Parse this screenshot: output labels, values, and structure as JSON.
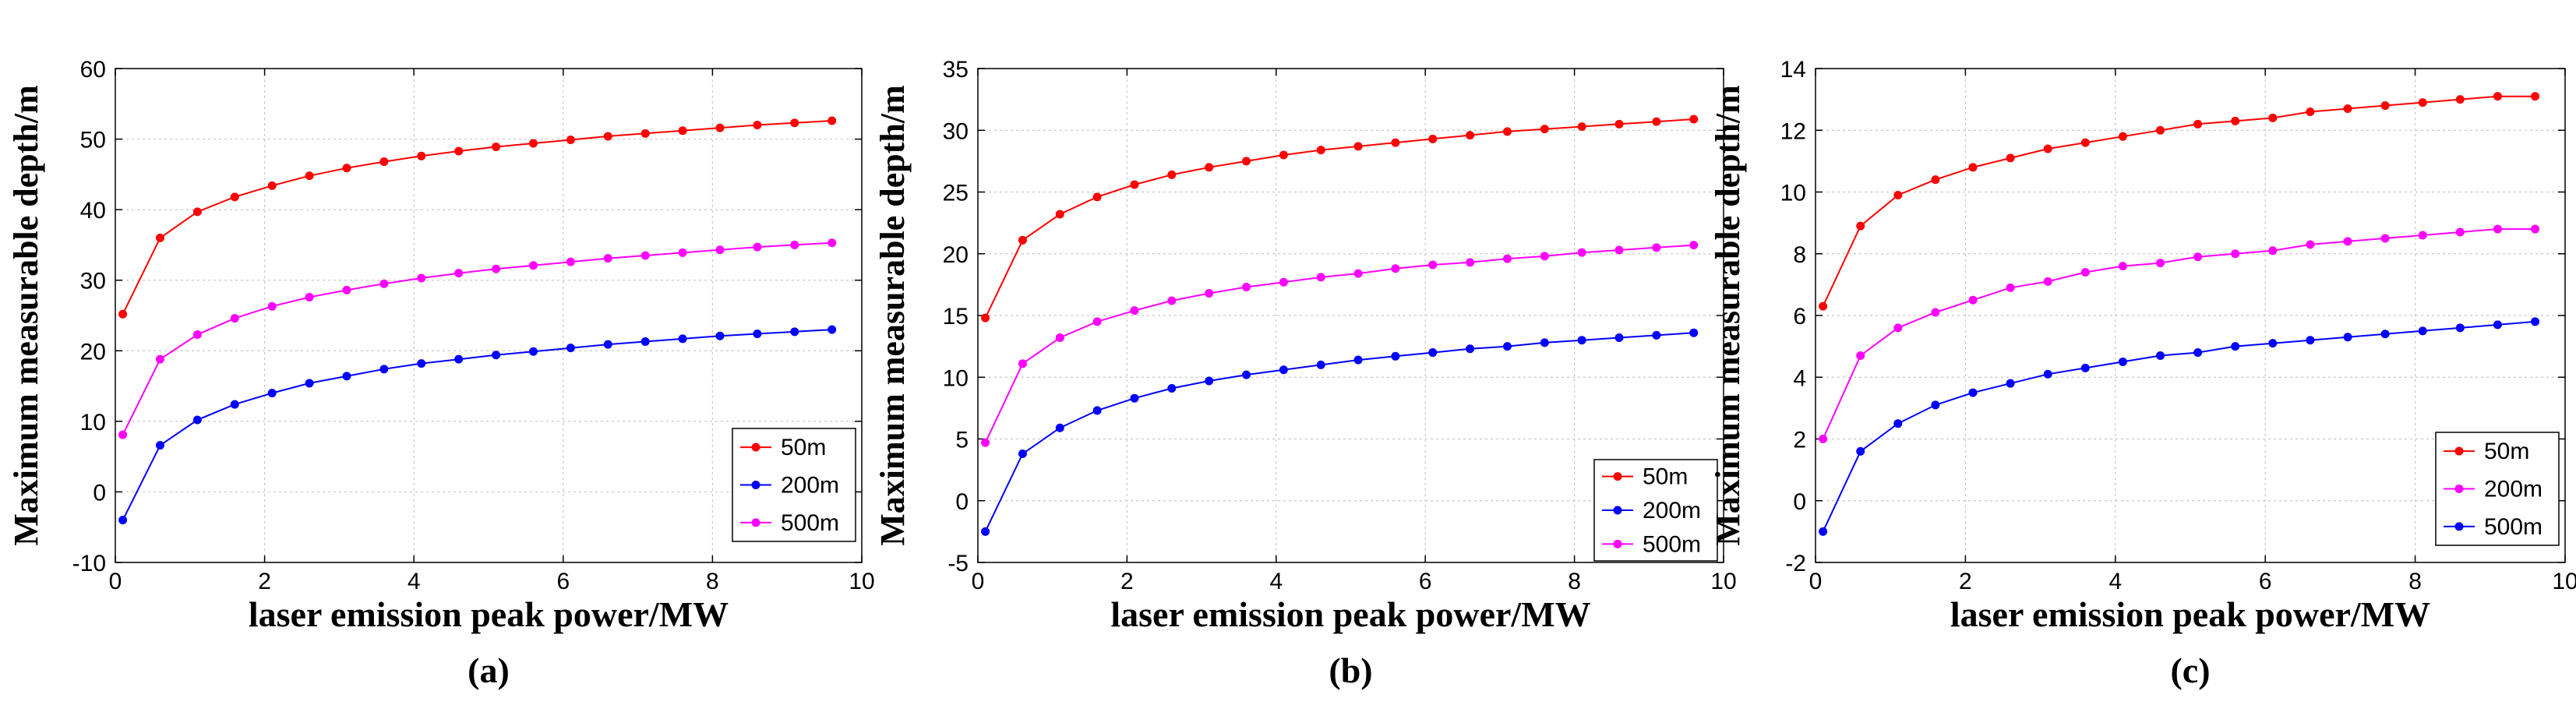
{
  "chart_data": [
    {
      "type": "line",
      "panel_label": "(a)",
      "xlabel": "laser emission peak power/MW",
      "ylabel": "Maximum measurable depth/m",
      "xlim": [
        0,
        10
      ],
      "ylim": [
        -10,
        60
      ],
      "xticks": [
        0,
        2,
        4,
        6,
        8,
        10
      ],
      "yticks": [
        -10,
        0,
        10,
        20,
        30,
        40,
        50,
        60
      ],
      "grid": true,
      "legend_position": "lower-right",
      "x": [
        0.1,
        0.6,
        1.1,
        1.6,
        2.1,
        2.6,
        3.1,
        3.6,
        4.1,
        4.6,
        5.1,
        5.6,
        6.1,
        6.6,
        7.1,
        7.6,
        8.1,
        8.6,
        9.1,
        9.6
      ],
      "series": [
        {
          "name": "50m",
          "color": "#ff0000",
          "values": [
            25.2,
            36.0,
            39.7,
            41.8,
            43.4,
            44.8,
            45.9,
            46.8,
            47.6,
            48.3,
            48.9,
            49.4,
            49.9,
            50.4,
            50.8,
            51.2,
            51.6,
            52.0,
            52.3,
            52.6
          ]
        },
        {
          "name": "200m",
          "color": "#0000ff",
          "values": [
            -4.0,
            6.6,
            10.2,
            12.4,
            14.0,
            15.4,
            16.4,
            17.4,
            18.2,
            18.8,
            19.4,
            19.9,
            20.4,
            20.9,
            21.3,
            21.7,
            22.1,
            22.4,
            22.7,
            23.0
          ]
        },
        {
          "name": "500m",
          "color": "#ff00ff",
          "values": [
            8.1,
            18.8,
            22.3,
            24.6,
            26.3,
            27.6,
            28.6,
            29.5,
            30.3,
            31.0,
            31.6,
            32.1,
            32.6,
            33.1,
            33.5,
            33.9,
            34.3,
            34.7,
            35.0,
            35.3
          ]
        }
      ]
    },
    {
      "type": "line",
      "panel_label": "(b)",
      "xlabel": "laser emission peak power/MW",
      "ylabel": "Maximum measurable depth/m",
      "xlim": [
        0,
        10
      ],
      "ylim": [
        -5,
        35
      ],
      "xticks": [
        0,
        2,
        4,
        6,
        8,
        10
      ],
      "yticks": [
        -5,
        0,
        5,
        10,
        15,
        20,
        25,
        30,
        35
      ],
      "grid": true,
      "legend_position": "lower-right",
      "x": [
        0.1,
        0.6,
        1.1,
        1.6,
        2.1,
        2.6,
        3.1,
        3.6,
        4.1,
        4.6,
        5.1,
        5.6,
        6.1,
        6.6,
        7.1,
        7.6,
        8.1,
        8.6,
        9.1,
        9.6
      ],
      "series": [
        {
          "name": "50m",
          "color": "#ff0000",
          "values": [
            14.8,
            21.1,
            23.2,
            24.6,
            25.6,
            26.4,
            27.0,
            27.5,
            28.0,
            28.4,
            28.7,
            29.0,
            29.3,
            29.6,
            29.9,
            30.1,
            30.3,
            30.5,
            30.7,
            30.9
          ]
        },
        {
          "name": "200m",
          "color": "#0000ff",
          "values": [
            -2.5,
            3.8,
            5.9,
            7.3,
            8.3,
            9.1,
            9.7,
            10.2,
            10.6,
            11.0,
            11.4,
            11.7,
            12.0,
            12.3,
            12.5,
            12.8,
            13.0,
            13.2,
            13.4,
            13.6
          ]
        },
        {
          "name": "500m",
          "color": "#ff00ff",
          "values": [
            4.7,
            11.1,
            13.2,
            14.5,
            15.4,
            16.2,
            16.8,
            17.3,
            17.7,
            18.1,
            18.4,
            18.8,
            19.1,
            19.3,
            19.6,
            19.8,
            20.1,
            20.3,
            20.5,
            20.7
          ]
        }
      ]
    },
    {
      "type": "line",
      "panel_label": "(c)",
      "xlabel": "laser emission peak power/MW",
      "ylabel": "Maximum measurable depth/m",
      "xlim": [
        0,
        10
      ],
      "ylim": [
        -2,
        14
      ],
      "xticks": [
        0,
        2,
        4,
        6,
        8,
        10
      ],
      "yticks": [
        -2,
        0,
        2,
        4,
        6,
        8,
        10,
        12,
        14
      ],
      "grid": true,
      "legend_position": "lower-right",
      "x": [
        0.1,
        0.6,
        1.1,
        1.6,
        2.1,
        2.6,
        3.1,
        3.6,
        4.1,
        4.6,
        5.1,
        5.6,
        6.1,
        6.6,
        7.1,
        7.6,
        8.1,
        8.6,
        9.1,
        9.6
      ],
      "series": [
        {
          "name": "50m",
          "color": "#ff0000",
          "values": [
            6.3,
            8.9,
            9.9,
            10.4,
            10.8,
            11.1,
            11.4,
            11.6,
            11.8,
            12.0,
            12.2,
            12.3,
            12.4,
            12.6,
            12.7,
            12.8,
            12.9,
            13.0,
            13.1,
            13.1
          ]
        },
        {
          "name": "200m",
          "color": "#ff00ff",
          "values": [
            2.0,
            4.7,
            5.6,
            6.1,
            6.5,
            6.9,
            7.1,
            7.4,
            7.6,
            7.7,
            7.9,
            8.0,
            8.1,
            8.3,
            8.4,
            8.5,
            8.6,
            8.7,
            8.8,
            8.8
          ]
        },
        {
          "name": "500m",
          "color": "#0000ff",
          "values": [
            -1.0,
            1.6,
            2.5,
            3.1,
            3.5,
            3.8,
            4.1,
            4.3,
            4.5,
            4.7,
            4.8,
            5.0,
            5.1,
            5.2,
            5.3,
            5.4,
            5.5,
            5.6,
            5.7,
            5.8
          ]
        }
      ]
    }
  ]
}
